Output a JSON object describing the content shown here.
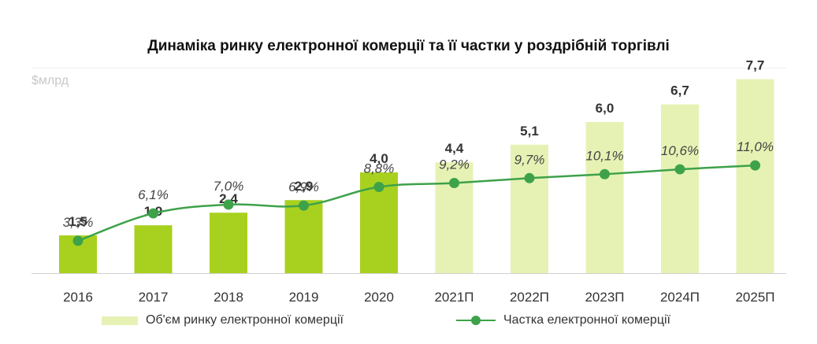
{
  "colors": {
    "actual": "#a8d11f",
    "forecast": "#e6f2b4",
    "line": "#3ea24a",
    "value_label": "#333333",
    "share_label": "#444444",
    "axis": "#d0d0d0"
  },
  "chart_data": {
    "type": "bar",
    "title": "Динаміка ринку електронної комерції та її частки у роздрібній торгівлі",
    "ylabel": "$млрд",
    "categories": [
      "2016",
      "2017",
      "2018",
      "2019",
      "2020",
      "2021П",
      "2022П",
      "2023П",
      "2024П",
      "2025П"
    ],
    "forecast_from_index": 5,
    "series": [
      {
        "name": "Об'єм ринку електронної комерції",
        "kind": "bar",
        "values": [
          1.5,
          1.9,
          2.4,
          2.9,
          4.0,
          4.4,
          5.1,
          6.0,
          6.7,
          7.7
        ],
        "labels": [
          "1,5",
          "1,9",
          "2,4",
          "2,9",
          "4,0",
          "4,4",
          "5,1",
          "6,0",
          "6,7",
          "7,7"
        ]
      },
      {
        "name": "Частка електронної комерції",
        "kind": "line",
        "values": [
          3.3,
          6.1,
          7.0,
          6.9,
          8.8,
          9.2,
          9.7,
          10.1,
          10.6,
          11.0
        ],
        "labels": [
          "3,3%",
          "6,1%",
          "7,0%",
          "6,9%",
          "8,8%",
          "9,2%",
          "9,7%",
          "10,1%",
          "10,6%",
          "11,0%"
        ]
      }
    ],
    "bar_ylim": [
      0,
      8.75
    ],
    "line_ylim": [
      0,
      22.5
    ],
    "legend_position": "bottom"
  }
}
